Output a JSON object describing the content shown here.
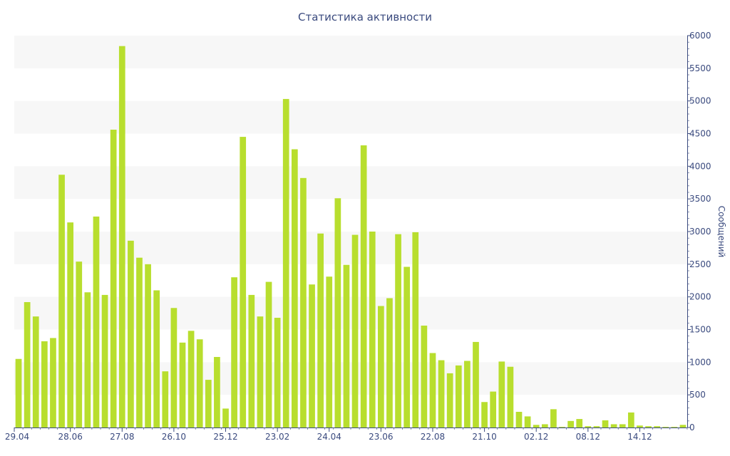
{
  "chart_data": {
    "type": "bar",
    "title": "Статистика активности",
    "ylabel": "Сообщений",
    "xlabel": "",
    "ylim": [
      0,
      6000
    ],
    "y_ticks": [
      0,
      500,
      1000,
      1500,
      2000,
      2500,
      3000,
      3500,
      4000,
      4500,
      5000,
      5500,
      6000
    ],
    "y_axis_side": "right",
    "grid": "alternating horizontal bands",
    "bar_color": "#b8de2e",
    "x_tick_labels": [
      {
        "index": 0,
        "label": "29.04"
      },
      {
        "index": 6,
        "label": "28.06"
      },
      {
        "index": 12,
        "label": "27.08"
      },
      {
        "index": 18,
        "label": "26.10"
      },
      {
        "index": 24,
        "label": "25.12"
      },
      {
        "index": 30,
        "label": "23.02"
      },
      {
        "index": 36,
        "label": "24.04"
      },
      {
        "index": 42,
        "label": "23.06"
      },
      {
        "index": 48,
        "label": "22.08"
      },
      {
        "index": 54,
        "label": "21.10"
      },
      {
        "index": 60,
        "label": "02.12"
      },
      {
        "index": 66,
        "label": "08.12"
      },
      {
        "index": 72,
        "label": "14.12"
      }
    ],
    "values": [
      1050,
      1920,
      1700,
      1320,
      1370,
      3870,
      3140,
      2540,
      2070,
      3230,
      2030,
      4560,
      5840,
      2860,
      2600,
      2500,
      2100,
      860,
      1830,
      1300,
      1480,
      1350,
      730,
      1080,
      290,
      2300,
      4450,
      2030,
      1700,
      2230,
      1680,
      5030,
      4260,
      3820,
      2190,
      2970,
      2310,
      3510,
      2490,
      2950,
      4320,
      3000,
      1860,
      1980,
      2960,
      2460,
      2990,
      1560,
      1140,
      1030,
      830,
      950,
      1020,
      1310,
      390,
      550,
      1010,
      930,
      240,
      170,
      40,
      50,
      280,
      10,
      100,
      130,
      20,
      20,
      110,
      50,
      50,
      230,
      30,
      20,
      20,
      10,
      10,
      40
    ]
  }
}
